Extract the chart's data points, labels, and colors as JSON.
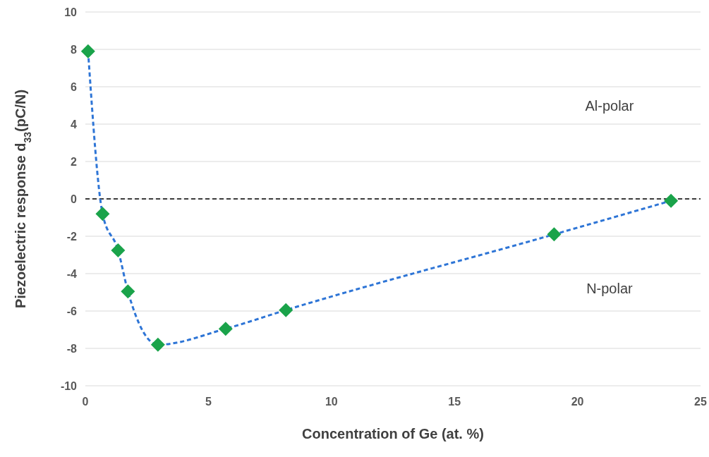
{
  "chart_data": {
    "type": "line",
    "xlabel": "Concentration of Ge (at. %)",
    "ylabel": "Piezoelectric response d$_{33}$(pC/N)",
    "xlim": [
      0,
      25
    ],
    "xticks": [
      0,
      5,
      10,
      15,
      20,
      25
    ],
    "ylim": [
      -10,
      10
    ],
    "yticks": [
      -10,
      -8,
      -6,
      -4,
      -2,
      0,
      2,
      4,
      6,
      8,
      10
    ],
    "grid": "y",
    "series": [
      {
        "color": "#2e75d6",
        "line_style": "dashed",
        "marker": "none",
        "x": [
          0.11,
          0.7,
          1.33,
          1.73,
          2.95,
          5.7,
          8.15,
          19.05,
          23.8
        ],
        "values": [
          7.9,
          -0.8,
          -2.75,
          -4.95,
          -7.8,
          -6.95,
          -5.95,
          -1.9,
          -0.1
        ]
      },
      {
        "type": "scatter",
        "color": "#1aa34a",
        "marker": "diamond",
        "x": [
          0.11,
          0.7,
          1.33,
          1.73,
          2.95,
          5.7,
          8.15,
          19.05,
          23.8
        ],
        "values": [
          7.9,
          -0.8,
          -2.75,
          -4.95,
          -7.8,
          -6.95,
          -5.95,
          -1.9,
          -0.1
        ]
      }
    ],
    "ref_lines": [
      {
        "axis": "y",
        "value": 0,
        "color": "#000000",
        "line_style": "dashed"
      }
    ],
    "annotations": [
      "Al-polar",
      "N-polar"
    ]
  }
}
